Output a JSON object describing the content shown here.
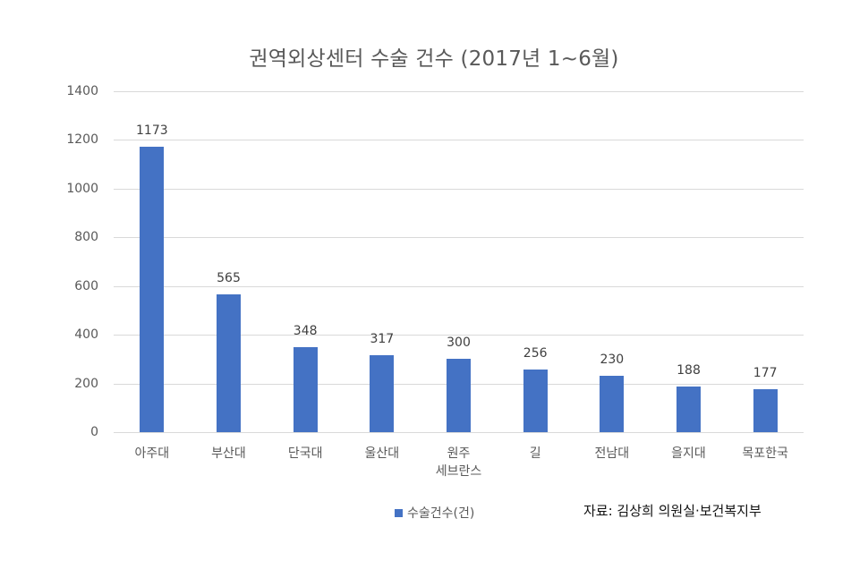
{
  "chart_data": {
    "type": "bar",
    "title": "권역외상센터 수술 건수 (2017년 1~6월)",
    "xlabel": "",
    "ylabel": "",
    "categories": [
      "아주대",
      "부산대",
      "단국대",
      "울산대",
      "원주 세브란스",
      "길",
      "전남대",
      "을지대",
      "목포한국"
    ],
    "category_lines": [
      [
        "아주대"
      ],
      [
        "부산대"
      ],
      [
        "단국대"
      ],
      [
        "울산대"
      ],
      [
        "원주",
        "세브란스"
      ],
      [
        "길"
      ],
      [
        "전남대"
      ],
      [
        "을지대"
      ],
      [
        "목포한국"
      ]
    ],
    "series": [
      {
        "name": "수술건수(건)",
        "values": [
          1173,
          565,
          348,
          317,
          300,
          256,
          230,
          188,
          177
        ],
        "color": "#4472c4"
      }
    ],
    "data_labels": [
      "1173",
      "565",
      "348",
      "317",
      "300",
      "256",
      "230",
      "188",
      "177"
    ],
    "ylim": [
      0,
      1400
    ],
    "yticks": [
      0,
      200,
      400,
      600,
      800,
      1000,
      1200,
      1400
    ],
    "ytick_labels": [
      "0",
      "200",
      "400",
      "600",
      "800",
      "1000",
      "1200",
      "1400"
    ],
    "grid": true,
    "legend_position": "bottom",
    "annotation": "자료: 김상희 의원실·보건복지부"
  },
  "title": "권역외상센터 수술 건수 (2017년 1~6월)",
  "legend": {
    "label": "수술건수(건)",
    "color": "#4472c4"
  },
  "source": "자료: 김상희 의원실·보건복지부",
  "colors": {
    "bar": "#4472c4",
    "grid": "#d9d9d9",
    "text": "#595959"
  }
}
